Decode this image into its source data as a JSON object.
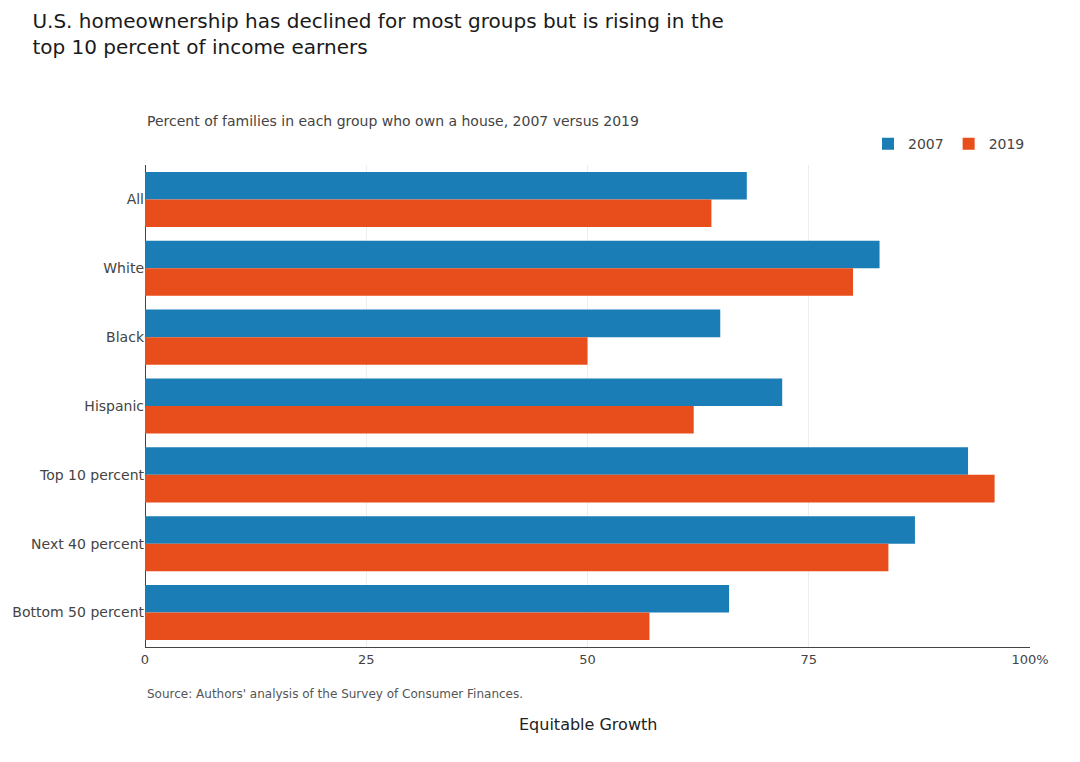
{
  "chart_data": {
    "type": "bar",
    "orientation": "horizontal",
    "title": "U.S. homeownership has declined for most groups but is rising in the\ntop 10 percent of income earners",
    "subtitle": "Percent of families in each group who own a house, 2007 versus 2019",
    "categories": [
      "All",
      "White",
      "Black",
      "Hispanic",
      "Top 10 percent",
      "Next 40 percent",
      "Bottom 50 percent"
    ],
    "series": [
      {
        "name": "2007",
        "color": "#1a7db5",
        "values": [
          68,
          83,
          65,
          72,
          93,
          87,
          66
        ]
      },
      {
        "name": "2019",
        "color": "#e84e1b",
        "values": [
          64,
          80,
          50,
          62,
          96,
          84,
          57
        ]
      }
    ],
    "xlim": [
      0,
      100
    ],
    "xticks": [
      0,
      25,
      50,
      75,
      {
        "value": 100,
        "label": "100%"
      }
    ],
    "grid": true,
    "legend": "top",
    "source": "Source: Authors' analysis of the Survey of Consumer Finances.",
    "annotations": [
      "Equitable Growth"
    ]
  }
}
